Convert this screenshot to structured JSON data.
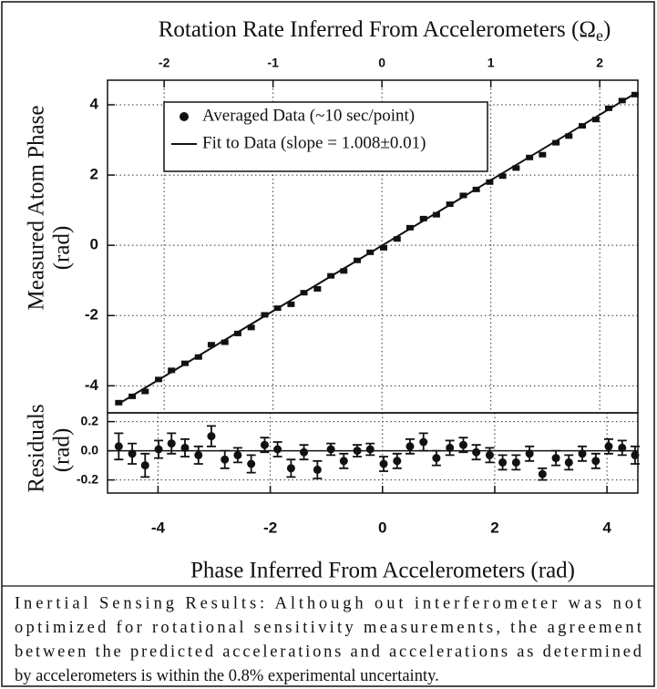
{
  "chart_data": {
    "type": "scatter",
    "x2_label": {
      "text": "Rotation Rate Inferred From Accelerometers (Ω",
      "subscript": "e",
      "suffix": ")"
    },
    "xlabel": "Phase Inferred From Accelerometers (rad)",
    "ylabel": [
      "Measured Atom Phase",
      "(rad)"
    ],
    "residual_label": [
      "Residuals",
      "(rad)"
    ],
    "xlim": [
      -4.9,
      4.55
    ],
    "xticks": [
      -4,
      -2,
      0,
      2,
      4
    ],
    "x2lim": [
      -2.52,
      2.35
    ],
    "x2ticks": [
      -2,
      -1,
      0,
      1,
      2
    ],
    "ylim": [
      -4.77,
      4.7
    ],
    "yticks": [
      -4,
      -2,
      0,
      2,
      4
    ],
    "grid": true,
    "legend": "upper left",
    "series": [
      {
        "name": "Averaged Data (~10 sec/point)",
        "color": "#111111",
        "x": [
          -4.7,
          -4.46,
          -4.23,
          -3.99,
          -3.76,
          -3.52,
          -3.28,
          -3.05,
          -2.81,
          -2.58,
          -2.34,
          -2.1,
          -1.87,
          -1.63,
          -1.4,
          -1.16,
          -0.92,
          -0.69,
          -0.45,
          -0.22,
          0.02,
          0.26,
          0.49,
          0.73,
          0.96,
          1.2,
          1.44,
          1.67,
          1.91,
          2.14,
          2.38,
          2.62,
          2.85,
          3.09,
          3.32,
          3.56,
          3.8,
          4.03,
          4.27,
          4.5
        ],
        "values": [
          -4.48,
          -4.3,
          -4.16,
          -3.82,
          -3.56,
          -3.36,
          -3.18,
          -2.83,
          -2.76,
          -2.51,
          -2.34,
          -1.98,
          -1.79,
          -1.68,
          -1.35,
          -1.24,
          -0.87,
          -0.73,
          -0.43,
          -0.2,
          -0.07,
          0.18,
          0.5,
          0.76,
          0.87,
          1.17,
          1.42,
          1.59,
          1.8,
          1.97,
          2.2,
          2.5,
          2.58,
          2.92,
          3.11,
          3.4,
          3.58,
          3.9,
          4.12,
          4.29
        ]
      }
    ],
    "fit": {
      "name": "Fit to Data (slope = 1.008±0.01)",
      "color": "#111111",
      "x": [
        -4.7,
        4.5
      ],
      "values": [
        -4.51,
        4.32
      ]
    },
    "residuals": {
      "ylim": [
        -0.29,
        0.26
      ],
      "yticks": [
        {
          "value": 0.2,
          "label": "0.2"
        },
        {
          "value": 0,
          "label": "0.0"
        },
        {
          "value": -0.2,
          "label": "-0.2"
        }
      ],
      "values": [
        0.03,
        -0.02,
        -0.1,
        0.01,
        0.05,
        0.02,
        -0.03,
        0.1,
        -0.06,
        -0.03,
        -0.09,
        0.04,
        0.01,
        -0.12,
        -0.01,
        -0.13,
        0.01,
        -0.07,
        0.0,
        0.01,
        -0.09,
        -0.07,
        0.03,
        0.06,
        -0.05,
        0.02,
        0.04,
        -0.01,
        -0.03,
        -0.08,
        -0.08,
        -0.02,
        -0.16,
        -0.05,
        -0.08,
        -0.02,
        -0.07,
        0.03,
        0.02,
        -0.03
      ],
      "errors": [
        0.09,
        0.07,
        0.08,
        0.06,
        0.07,
        0.06,
        0.06,
        0.07,
        0.06,
        0.05,
        0.06,
        0.05,
        0.05,
        0.06,
        0.05,
        0.06,
        0.04,
        0.05,
        0.04,
        0.04,
        0.05,
        0.05,
        0.05,
        0.06,
        0.05,
        0.05,
        0.05,
        0.05,
        0.05,
        0.05,
        0.05,
        0.05,
        0.04,
        0.05,
        0.05,
        0.05,
        0.05,
        0.05,
        0.05,
        0.06
      ]
    }
  },
  "caption": [
    "Inertial Sensing Results: Although out interferometer was not",
    "optimized for rotational sensitivity measurements, the agreement",
    "between the predicted accelerations and accelerations as determined",
    "by accelerometers is within the 0.8% experimental uncertainty."
  ]
}
